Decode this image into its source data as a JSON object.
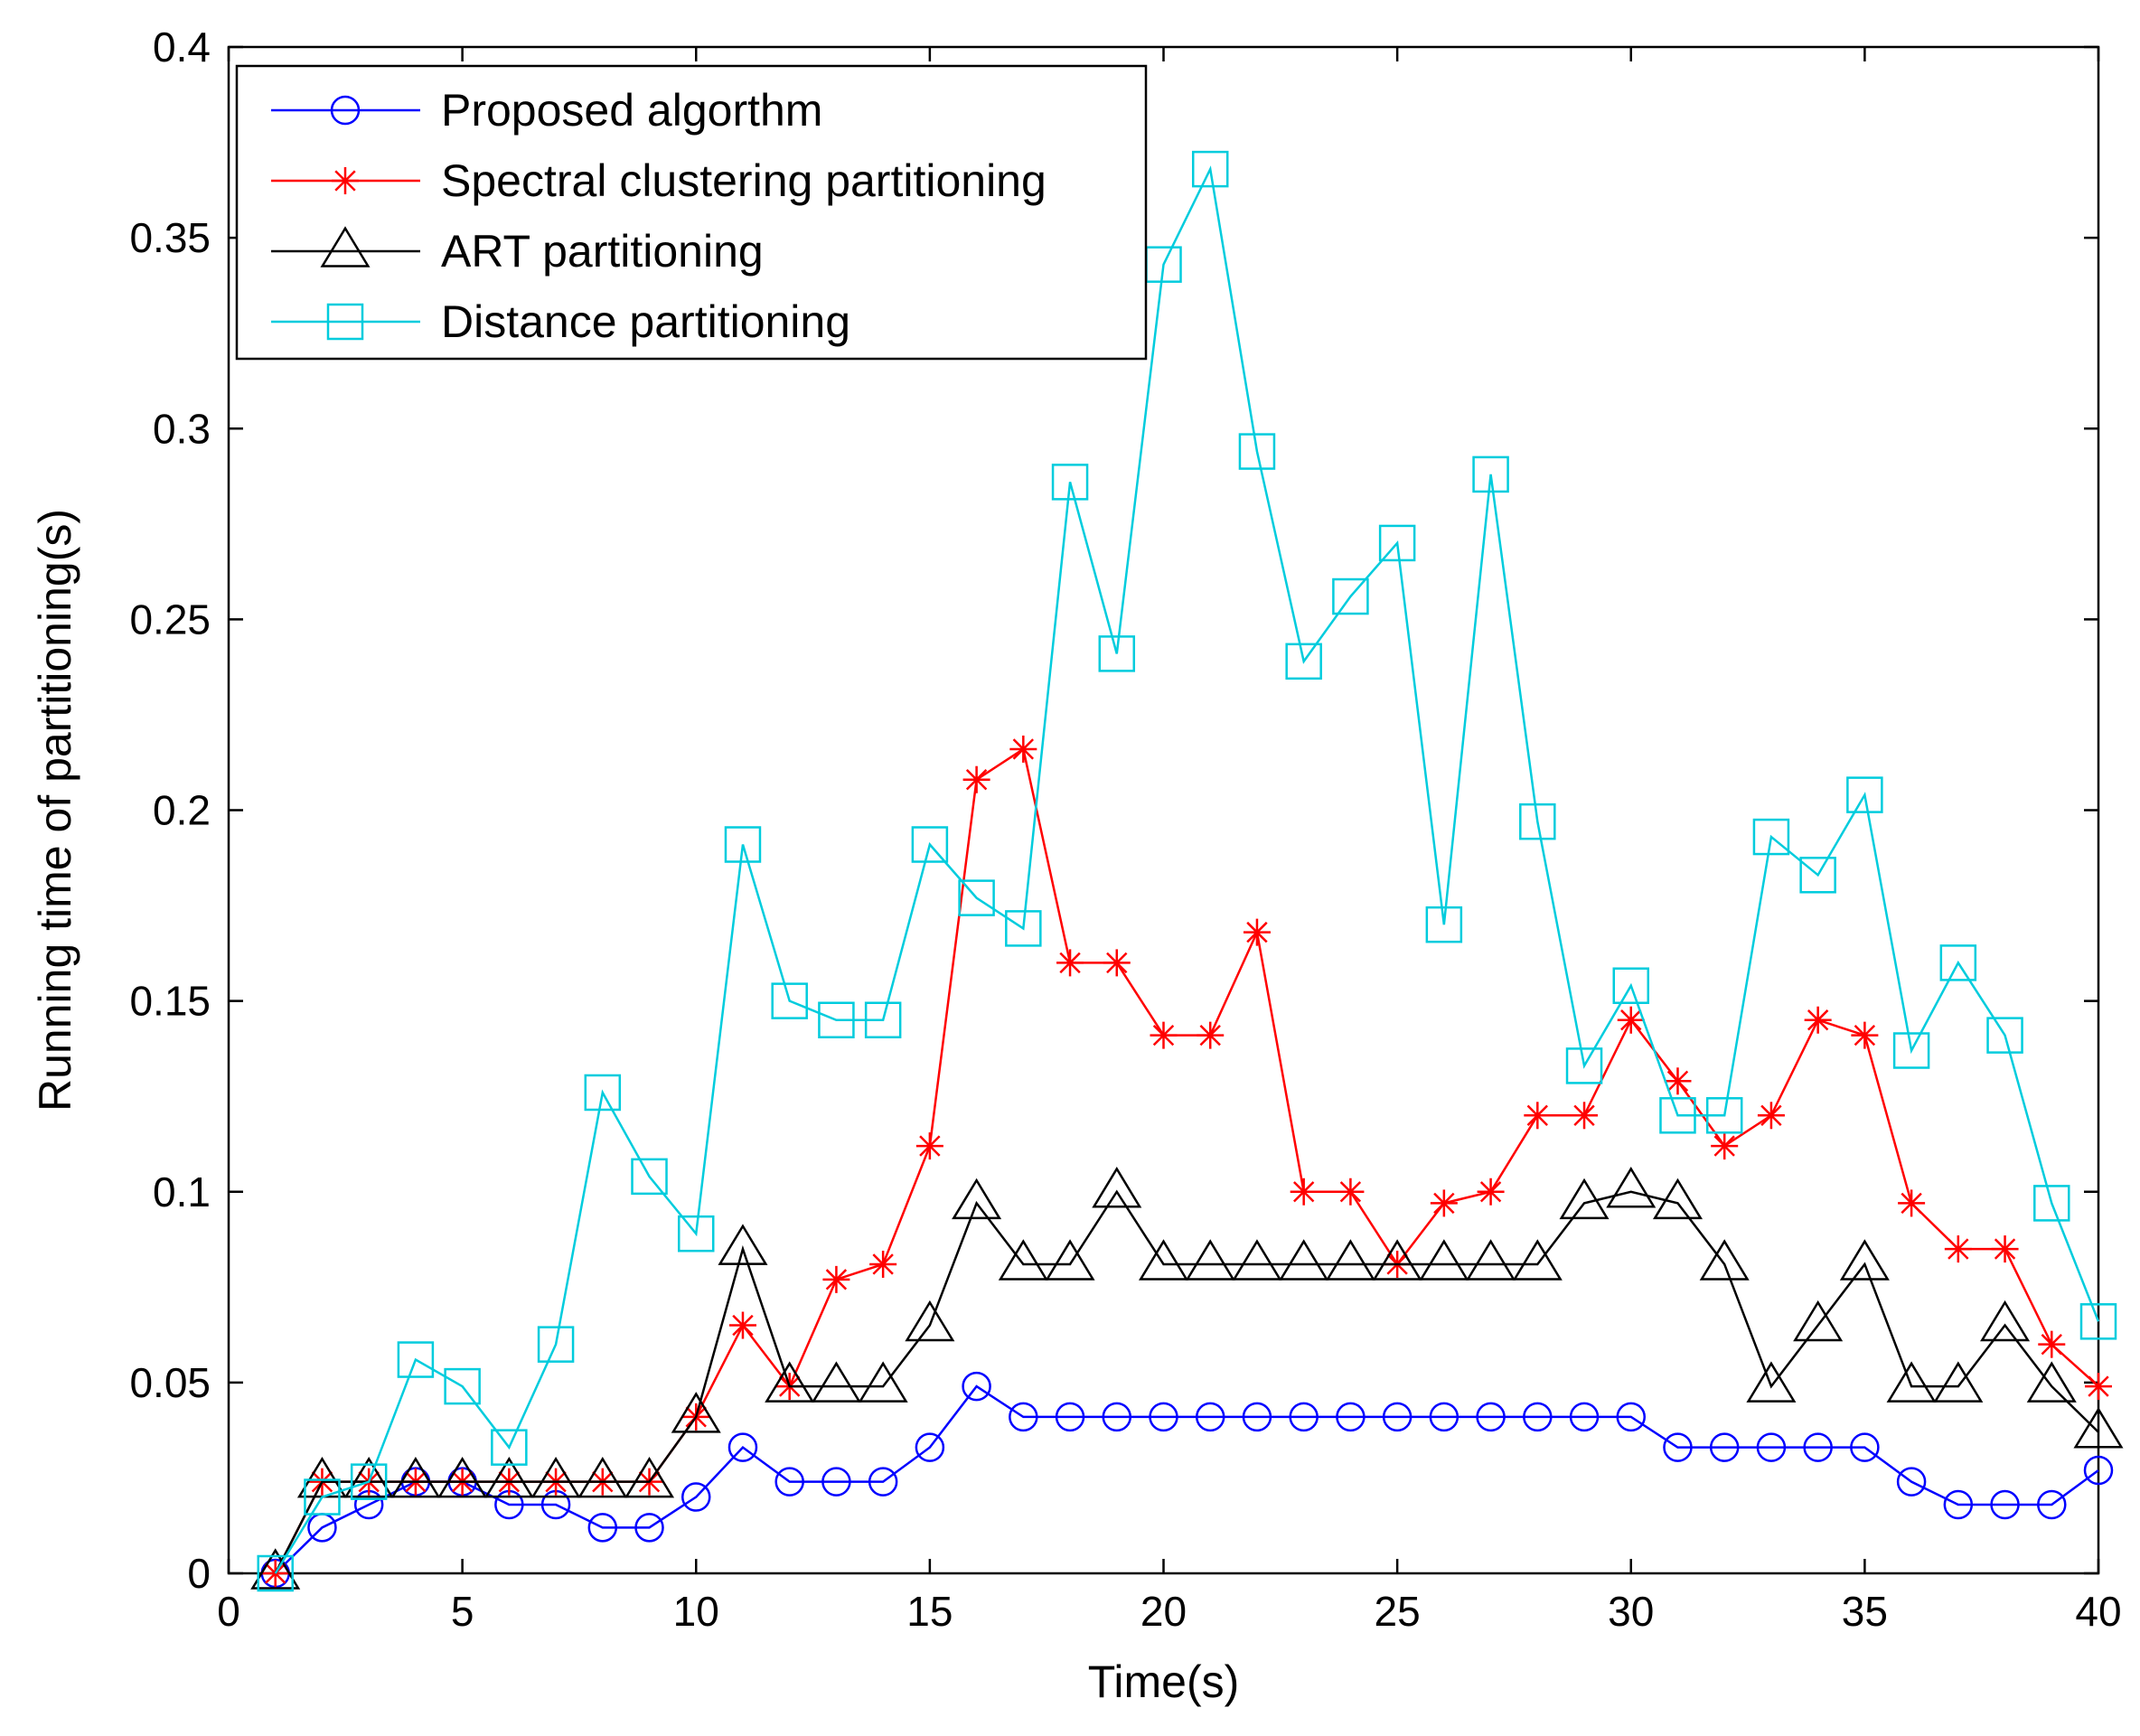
{
  "chart_data": {
    "type": "line",
    "title": "",
    "xlabel": "Time(s)",
    "ylabel": "Running time of partitioning(s)",
    "xlim": [
      0,
      40
    ],
    "ylim": [
      0,
      0.4
    ],
    "xticks": [
      0,
      5,
      10,
      15,
      20,
      25,
      30,
      35,
      40
    ],
    "xtick_labels": [
      "0",
      "5",
      "10",
      "15",
      "20",
      "25",
      "30",
      "35",
      "40"
    ],
    "yticks": [
      0,
      0.05,
      0.1,
      0.15,
      0.2,
      0.25,
      0.3,
      0.35,
      0.4
    ],
    "ytick_labels": [
      "0",
      "0.05",
      "0.1",
      "0.15",
      "0.2",
      "0.25",
      "0.3",
      "0.35",
      "0.4"
    ],
    "grid": false,
    "legend_position": "top-left",
    "x": [
      1,
      2,
      3,
      4,
      5,
      6,
      7,
      8,
      9,
      10,
      11,
      12,
      13,
      14,
      15,
      16,
      17,
      18,
      19,
      20,
      21,
      22,
      23,
      24,
      25,
      26,
      27,
      28,
      29,
      30,
      31,
      32,
      33,
      34,
      35,
      36,
      37,
      38,
      39,
      40
    ],
    "series": [
      {
        "name": "Proposed algorthm",
        "color": "#0000ff",
        "marker": "circle",
        "values": [
          0,
          0.012,
          0.018,
          0.024,
          0.024,
          0.018,
          0.018,
          0.012,
          0.012,
          0.02,
          0.033,
          0.024,
          0.024,
          0.024,
          0.033,
          0.049,
          0.041,
          0.041,
          0.041,
          0.041,
          0.041,
          0.041,
          0.041,
          0.041,
          0.041,
          0.041,
          0.041,
          0.041,
          0.041,
          0.041,
          0.033,
          0.033,
          0.033,
          0.033,
          0.033,
          0.024,
          0.018,
          0.018,
          0.018,
          0.027
        ]
      },
      {
        "name": "Spectral clustering partitioning",
        "color": "#ff0000",
        "marker": "star",
        "values": [
          0,
          0.024,
          0.024,
          0.024,
          0.024,
          0.024,
          0.024,
          0.024,
          0.024,
          0.041,
          0.065,
          0.049,
          0.077,
          0.081,
          0.112,
          0.208,
          0.216,
          0.16,
          0.16,
          0.141,
          0.141,
          0.168,
          0.1,
          0.1,
          0.081,
          0.097,
          0.1,
          0.12,
          0.12,
          0.145,
          0.129,
          0.112,
          0.12,
          0.145,
          0.141,
          0.097,
          0.085,
          0.085,
          0.06,
          0.049
        ]
      },
      {
        "name": "ART partitioning",
        "color": "#000000",
        "marker": "triangle",
        "values": [
          0,
          0.024,
          0.024,
          0.024,
          0.024,
          0.024,
          0.024,
          0.024,
          0.024,
          0.041,
          0.085,
          0.049,
          0.049,
          0.049,
          0.065,
          0.097,
          0.081,
          0.081,
          0.1,
          0.081,
          0.081,
          0.081,
          0.081,
          0.081,
          0.081,
          0.081,
          0.081,
          0.081,
          0.097,
          0.1,
          0.097,
          0.081,
          0.049,
          0.065,
          0.081,
          0.049,
          0.049,
          0.065,
          0.049,
          0.037
        ]
      },
      {
        "name": "Distance partitioning",
        "color": "#00ccdd",
        "marker": "square",
        "values": [
          0,
          0.02,
          0.024,
          0.056,
          0.049,
          0.033,
          0.06,
          0.126,
          0.104,
          0.089,
          0.191,
          0.15,
          0.145,
          0.145,
          0.191,
          0.177,
          0.169,
          0.286,
          0.241,
          0.343,
          0.368,
          0.294,
          0.239,
          0.256,
          0.27,
          0.17,
          0.288,
          0.197,
          0.133,
          0.154,
          0.12,
          0.12,
          0.193,
          0.183,
          0.204,
          0.137,
          0.16,
          0.141,
          0.097,
          0.066
        ]
      }
    ]
  }
}
